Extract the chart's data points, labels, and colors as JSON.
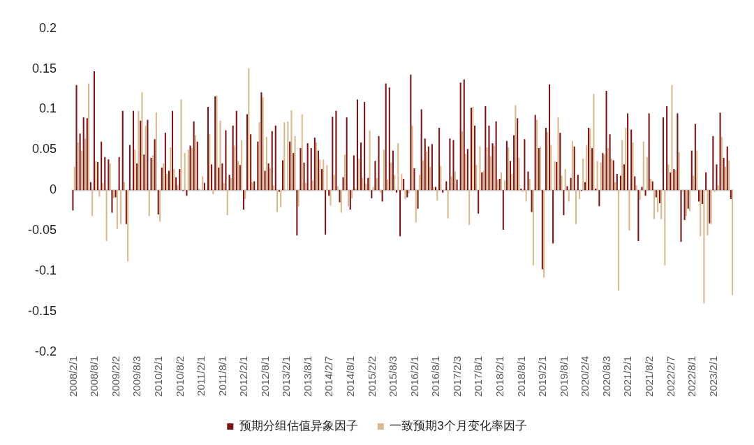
{
  "chart_data": {
    "type": "bar",
    "categories": [
      "2008/2/1",
      null,
      null,
      null,
      null,
      null,
      "2008/8/1",
      null,
      null,
      null,
      null,
      null,
      "2009/2/2",
      null,
      null,
      null,
      null,
      null,
      "2009/8/3",
      null,
      null,
      null,
      null,
      null,
      "2010/2/1",
      null,
      null,
      null,
      null,
      null,
      "2010/8/2",
      null,
      null,
      null,
      null,
      null,
      "2011/2/1",
      null,
      null,
      null,
      null,
      null,
      "2011/8/1",
      null,
      null,
      null,
      null,
      null,
      "2012/2/1",
      null,
      null,
      null,
      null,
      null,
      "2012/8/1",
      null,
      null,
      null,
      null,
      null,
      "2013/2/1",
      null,
      null,
      null,
      null,
      null,
      "2013/8/1",
      null,
      null,
      null,
      null,
      null,
      "2014/2/7",
      null,
      null,
      null,
      null,
      null,
      "2014/8/1",
      null,
      null,
      null,
      null,
      null,
      "2015/2/2",
      null,
      null,
      null,
      null,
      null,
      "2015/8/3",
      null,
      null,
      null,
      null,
      null,
      "2016/2/1",
      null,
      null,
      null,
      null,
      null,
      "2016/8/1",
      null,
      null,
      null,
      null,
      null,
      "2017/2/3",
      null,
      null,
      null,
      null,
      null,
      "2017/8/1",
      null,
      null,
      null,
      null,
      null,
      "2018/2/1",
      null,
      null,
      null,
      null,
      null,
      "2018/8/1",
      null,
      null,
      null,
      null,
      null,
      "2019/2/1",
      null,
      null,
      null,
      null,
      null,
      "2019/8/1",
      null,
      null,
      null,
      null,
      null,
      "2020/2/4",
      null,
      null,
      null,
      null,
      null,
      "2020/8/3",
      null,
      null,
      null,
      null,
      null,
      "2021/2/1",
      null,
      null,
      null,
      null,
      null,
      "2021/8/2",
      null,
      null,
      null,
      null,
      null,
      "2022/2/7",
      null,
      null,
      null,
      null,
      null,
      "2022/8/1",
      null,
      null,
      null,
      null,
      null,
      "2023/2/1",
      null,
      null,
      null,
      null,
      null
    ],
    "series": [
      {
        "name": "预期分组估值异象因子",
        "color": "#7a1416",
        "values": [
          -0.025,
          0.13,
          0.07,
          0.09,
          0.089,
          0.01,
          0.147,
          0.035,
          0.06,
          0.041,
          0.038,
          -0.028,
          -0.009,
          0.041,
          0.098,
          -0.042,
          0.056,
          0.098,
          0.033,
          0.086,
          0.044,
          0.087,
          0.04,
          0.063,
          -0.03,
          0.028,
          0.071,
          0.024,
          0.098,
          0.016,
          0.026,
          -0.001,
          -0.007,
          0.055,
          0.085,
          0.06,
          0,
          0.009,
          0.103,
          0.032,
          0.116,
          0.028,
          0.033,
          0.074,
          0.019,
          0.08,
          0.098,
          0.031,
          -0.024,
          0.094,
          0.069,
          0.011,
          0.06,
          0.121,
          0.024,
          0.033,
          0.073,
          0.08,
          -0.002,
          0.037,
          0,
          0.06,
          0.046,
          -0.056,
          0.052,
          0.034,
          0.058,
          0.052,
          0.065,
          0.049,
          0.026,
          -0.055,
          -0.007,
          0.091,
          0.098,
          -0.015,
          0.016,
          0.09,
          -0.024,
          0.043,
          0.112,
          0.059,
          0.109,
          0.015,
          -0.01,
          0.036,
          0.067,
          -0.014,
          0.132,
          0.127,
          0.049,
          -0.003,
          -0.057,
          0.014,
          -0.009,
          0.143,
          0.027,
          -0.023,
          0.1,
          0.064,
          0.054,
          0.057,
          0.004,
          0.077,
          -0.003,
          0.011,
          0.064,
          0.062,
          0.013,
          0.133,
          0.137,
          0.051,
          0.102,
          0.08,
          -0.029,
          0.022,
          0.104,
          0.08,
          0.058,
          0.085,
          0.014,
          -0.049,
          0.061,
          0.036,
          0.068,
          0.089,
          0.002,
          0.063,
          0.023,
          -0.027,
          0.093,
          0.052,
          -0.098,
          0.077,
          0.131,
          -0.066,
          0.035,
          0.071,
          -0.031,
          0.005,
          0.015,
          0.054,
          0.019,
          -0.001,
          0.01,
          0.077,
          0.052,
          0.002,
          -0.02,
          0.046,
          0.123,
          0.069,
          0.037,
          0.02,
          0.018,
          0.032,
          0.095,
          0.075,
          0.017,
          -0.063,
          0.004,
          -0.007,
          0.095,
          0.011,
          -0.009,
          -0.016,
          0.09,
          0.104,
          0.022,
          0.026,
          0.095,
          -0.064,
          -0.037,
          -0.023,
          0.049,
          0.082,
          -0.014,
          -0.017,
          0.022,
          -0.041,
          0.067,
          0.032,
          0.096,
          0.04,
          0.054,
          -0.011
        ]
      },
      {
        "name": "一致预期3个月变化率因子",
        "color": "#d8b88c",
        "values": [
          0.029,
          0.059,
          0.049,
          0.064,
          0.132,
          -0.032,
          0.036,
          -0.008,
          0.009,
          -0.063,
          0.033,
          -0.01,
          -0.048,
          -0.042,
          0.01,
          -0.088,
          0.001,
          0.05,
          0.098,
          0.121,
          0.08,
          -0.032,
          0.043,
          0.096,
          -0.039,
          0.033,
          0.02,
          0.053,
          0.026,
          0.006,
          0.112,
          0.046,
          0.05,
          0.052,
          0.068,
          0.002,
          0.017,
          0,
          0.069,
          -0.005,
          0.117,
          0.086,
          0.009,
          -0.031,
          0.015,
          0.055,
          0.036,
          0.062,
          -0.011,
          0.151,
          0.01,
          0,
          0.084,
          0.115,
          0.066,
          0.027,
          0.006,
          -0.027,
          -0.021,
          0.084,
          0.085,
          0.099,
          0.067,
          -0.02,
          0.094,
          0.009,
          -0.001,
          0.012,
          0.059,
          0.038,
          0.038,
          0.031,
          -0.019,
          0.019,
          0.005,
          -0.028,
          0.044,
          -0.02,
          -0.01,
          0.002,
          0.039,
          0.015,
          0.008,
          0.074,
          0.004,
          0.015,
          -0.003,
          0.05,
          0.013,
          0.034,
          0.019,
          0.058,
          0.02,
          -0.011,
          -0.004,
          0.08,
          -0.04,
          0.019,
          0.037,
          0.048,
          0.029,
          0.004,
          -0.013,
          0.03,
          0,
          -0.035,
          0.017,
          0.023,
          0,
          0.073,
          0.045,
          -0.043,
          0.103,
          0.031,
          0.054,
          0.024,
          0.053,
          0.042,
          0.055,
          0.013,
          0.022,
          0.012,
          0.053,
          0.02,
          0.105,
          0.04,
          -0.002,
          -0.014,
          0.014,
          -0.093,
          0.087,
          0.054,
          -0.108,
          0.072,
          0.056,
          0.036,
          0.09,
          0.018,
          0.026,
          -0.014,
          0.061,
          -0.042,
          -0.011,
          0.039,
          0.056,
          0.076,
          0.119,
          0.036,
          0.034,
          0.044,
          0.052,
          0.039,
          0.01,
          -0.124,
          0.062,
          0.077,
          -0.05,
          0.059,
          0.006,
          -0.012,
          0.06,
          0.041,
          0.014,
          -0.036,
          -0.027,
          -0.036,
          -0.093,
          0.032,
          0.13,
          0.025,
          0.047,
          -0.002,
          -0.032,
          -0.026,
          0.018,
          0.049,
          -0.057,
          -0.14,
          -0.056,
          -0.042,
          -0.002,
          0.006,
          0.066,
          0.029,
          0.037,
          -0.13
        ]
      }
    ],
    "ylim": [
      -0.2,
      0.2
    ],
    "yticks": [
      -0.2,
      -0.15,
      -0.1,
      -0.05,
      0,
      0.05,
      0.1,
      0.15,
      0.2
    ],
    "grid": false,
    "legend": "bottom",
    "ref_lines": [
      {
        "axis": "y",
        "value": 0,
        "color": "#d9d9d9"
      }
    ]
  }
}
